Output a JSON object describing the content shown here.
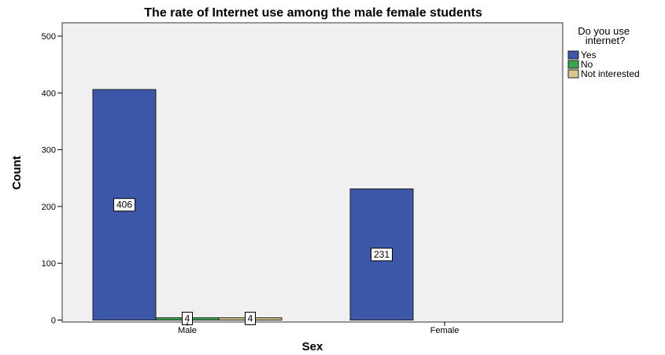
{
  "chart_data": {
    "type": "bar",
    "title": "The rate of Internet use among the male female students",
    "xlabel": "Sex",
    "ylabel": "Count",
    "categories": [
      "Male",
      "Female"
    ],
    "series": [
      {
        "name": "Yes",
        "values": [
          406,
          231
        ],
        "color": "#3d57a8"
      },
      {
        "name": "No",
        "values": [
          4,
          0
        ],
        "color": "#3aa64f"
      },
      {
        "name": "Not interested",
        "values": [
          4,
          0
        ],
        "color": "#d6c98f"
      }
    ],
    "data_labels": [
      [
        "406",
        "231"
      ],
      [
        "4",
        ""
      ],
      [
        "4",
        ""
      ]
    ],
    "ylim": [
      0,
      520
    ],
    "yticks": [
      0,
      100,
      200,
      300,
      400,
      500
    ],
    "grid": false,
    "plot_background": "#f0f0f0",
    "legend": {
      "title": "Do you use internet?",
      "title_lines": [
        "Do you use",
        "internet?"
      ],
      "position": "right"
    }
  }
}
